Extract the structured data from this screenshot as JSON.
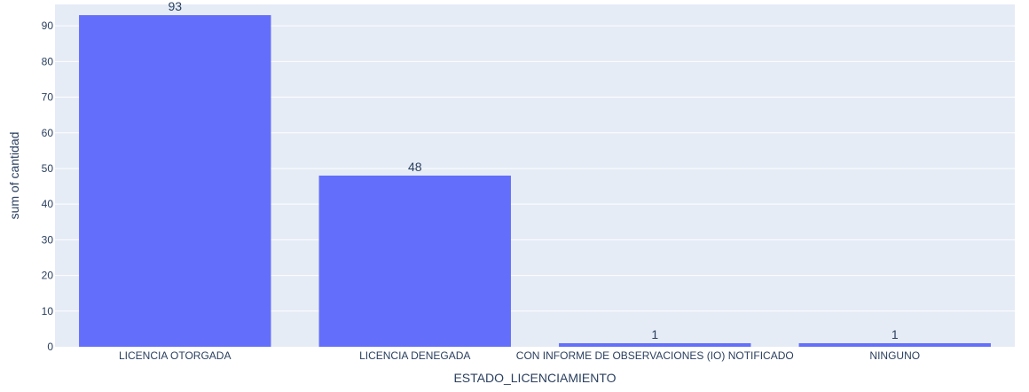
{
  "chart_data": {
    "type": "bar",
    "categories": [
      "LICENCIA OTORGADA",
      "LICENCIA DENEGADA",
      "CON INFORME DE OBSERVACIONES (IO) NOTIFICADO",
      "NINGUNO"
    ],
    "values": [
      93,
      48,
      1,
      1
    ],
    "data_labels": [
      "93",
      "48",
      "1",
      "1"
    ],
    "xlabel": "ESTADO_LICENCIAMIENTO",
    "ylabel": "sum of cantidad",
    "ylim": [
      0,
      96
    ],
    "yticks": [
      0,
      10,
      20,
      30,
      40,
      50,
      60,
      70,
      80,
      90
    ],
    "grid": true,
    "legend": "none",
    "colors": {
      "bar": "#636efa",
      "plot_background": "#e5ecf6",
      "text": "#2a3f5f",
      "grid": "#ffffff"
    }
  }
}
